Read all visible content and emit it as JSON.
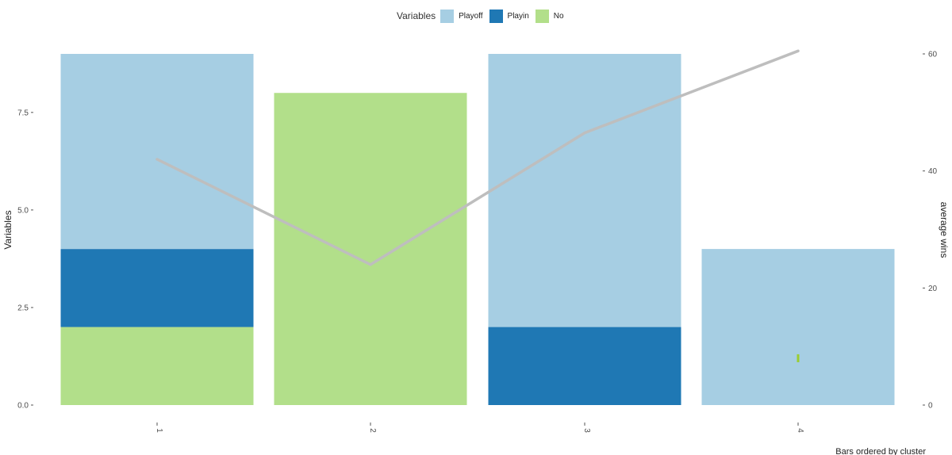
{
  "chart_data": {
    "type": "bar",
    "stacked": true,
    "categories": [
      "1",
      "2",
      "3",
      "4"
    ],
    "series": [
      {
        "name": "No",
        "color": "#b2df8a",
        "values": [
          2,
          8,
          0,
          0
        ]
      },
      {
        "name": "Playin",
        "color": "#1f78b4",
        "values": [
          2,
          0,
          2,
          0
        ]
      },
      {
        "name": "Playoff",
        "color": "#a6cee3",
        "values": [
          5,
          0,
          7,
          4
        ]
      }
    ],
    "line_series": {
      "axis": "secondary",
      "color": "#bebebe",
      "values": [
        42,
        24,
        46.5,
        60.5
      ]
    },
    "legend": {
      "title": "Variables",
      "position": "top",
      "items": [
        {
          "label": "Playoff",
          "color": "#a6cee3"
        },
        {
          "label": "Playin",
          "color": "#1f78b4"
        },
        {
          "label": "No",
          "color": "#b2df8a"
        }
      ]
    },
    "ylabel": "Variables",
    "ylabel_right": "average wins",
    "caption": "Bars ordered by cluster",
    "ylim": [
      0,
      9
    ],
    "y_ticks": [
      "0.0",
      "2.5",
      "5.0",
      "7.5"
    ],
    "y_tick_values": [
      0,
      2.5,
      5,
      7.5
    ],
    "ylim_right": [
      0,
      60
    ],
    "y2_ticks": [
      "0",
      "20",
      "40",
      "60"
    ],
    "y2_tick_values": [
      0,
      20,
      40,
      60
    ],
    "grid": false,
    "marker": {
      "category": "4",
      "value": 1.2,
      "color": "#9acd32"
    }
  }
}
